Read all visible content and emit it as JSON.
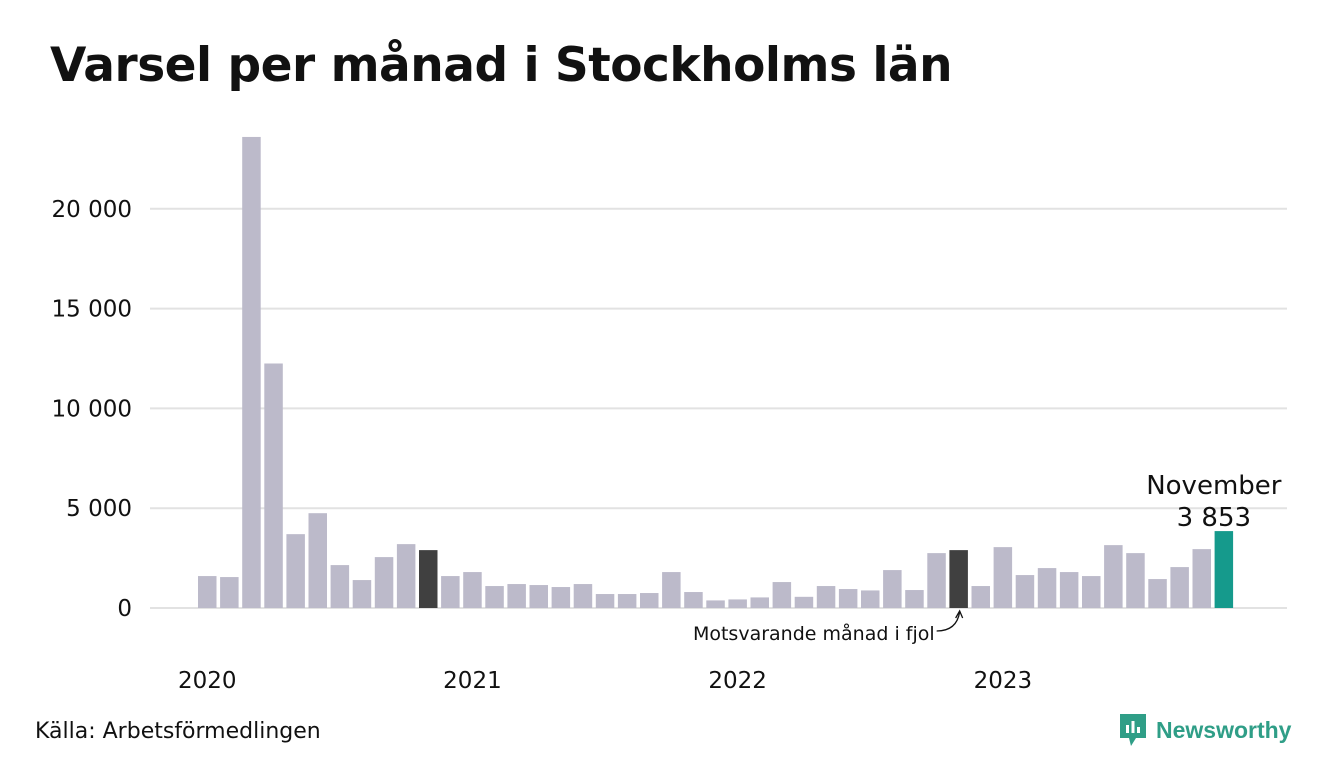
{
  "header": {
    "title": "Varsel per månad i Stockholms län"
  },
  "footer": {
    "source": "Källa: Arbetsförmedlingen",
    "brand": "Newsworthy"
  },
  "colors": {
    "bar_default": "#bcbaca",
    "bar_previous_year": "#404040",
    "bar_current": "#159a8c",
    "grid": "#e2e2e2",
    "brand": "#2f9e87"
  },
  "chart_data": {
    "type": "bar",
    "title": "Varsel per månad i Stockholms län",
    "xlabel": "",
    "ylabel": "",
    "ylim": [
      0,
      23000
    ],
    "yticks": [
      0,
      5000,
      10000,
      15000,
      20000
    ],
    "ytick_labels": [
      "0",
      "5 000",
      "10 000",
      "15 000",
      "20 000"
    ],
    "year_labels": [
      {
        "label": "2020",
        "index": 0
      },
      {
        "label": "2021",
        "index": 12
      },
      {
        "label": "2022",
        "index": 24
      },
      {
        "label": "2023",
        "index": 36
      }
    ],
    "grid": true,
    "categories": [
      "2020-01",
      "2020-02",
      "2020-03",
      "2020-04",
      "2020-05",
      "2020-06",
      "2020-07",
      "2020-08",
      "2020-09",
      "2020-10",
      "2020-11",
      "2020-12",
      "2021-01",
      "2021-02",
      "2021-03",
      "2021-04",
      "2021-05",
      "2021-06",
      "2021-07",
      "2021-08",
      "2021-09",
      "2021-10",
      "2021-11",
      "2021-12",
      "2022-01",
      "2022-02",
      "2022-03",
      "2022-04",
      "2022-05",
      "2022-06",
      "2022-07",
      "2022-08",
      "2022-09",
      "2022-10",
      "2022-11",
      "2022-12",
      "2023-01",
      "2023-02",
      "2023-03",
      "2023-04",
      "2023-05",
      "2023-06",
      "2023-07",
      "2023-08",
      "2023-09",
      "2023-10",
      "2023-11"
    ],
    "values": [
      1600,
      1550,
      23600,
      12250,
      3700,
      4750,
      2150,
      1400,
      2550,
      3200,
      2900,
      1600,
      1800,
      1100,
      1200,
      1150,
      1050,
      1200,
      700,
      700,
      750,
      1800,
      800,
      380,
      430,
      530,
      1300,
      560,
      1100,
      950,
      880,
      1900,
      900,
      2750,
      2900,
      1100,
      3050,
      1650,
      2000,
      1800,
      1600,
      3150,
      2750,
      1450,
      2050,
      2950,
      3853
    ],
    "highlights": {
      "previous_year_indices": [
        10,
        34
      ],
      "current_index": 46
    },
    "annotations": {
      "current_month": "November",
      "current_value": "3 853",
      "previous_year": "Motsvarande månad i fjol"
    }
  }
}
